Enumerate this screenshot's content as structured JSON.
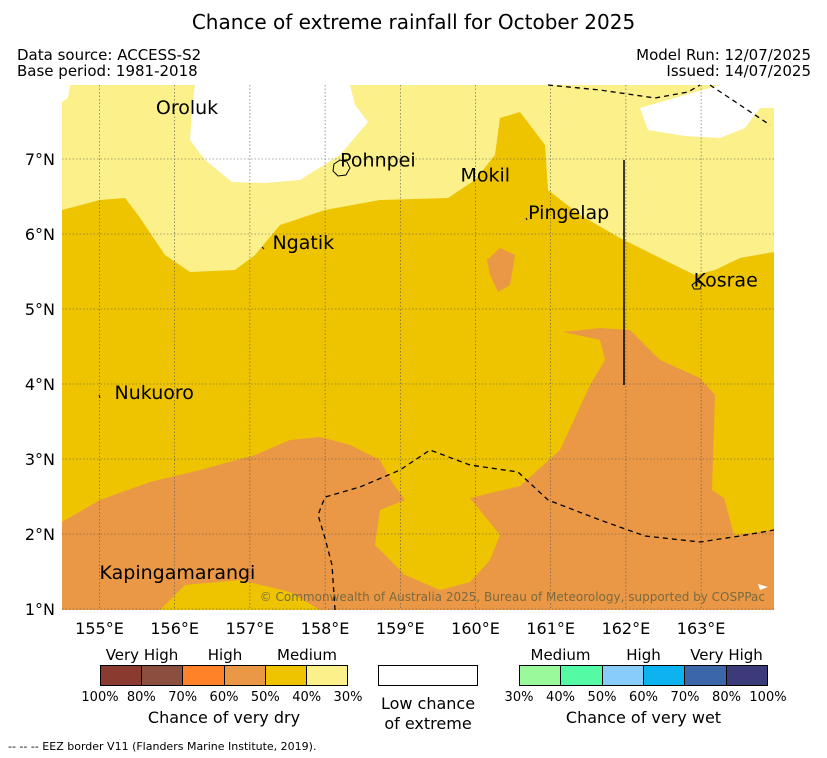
{
  "title": "Chance of extreme rainfall for October 2025",
  "meta": {
    "data_source": "Data source: ACCESS-S2",
    "base_period": "Base period: 1981-2018",
    "model_run": "Model Run: 12/07/2025",
    "issued": "Issued: 14/07/2025"
  },
  "map": {
    "lon_labels": [
      "155°E",
      "156°E",
      "157°E",
      "158°E",
      "159°E",
      "160°E",
      "161°E",
      "162°E",
      "163°E"
    ],
    "lat_labels": [
      "7°N",
      "6°N",
      "5°N",
      "4°N",
      "3°N",
      "2°N",
      "1°N"
    ],
    "places": [
      {
        "name": "Oroluk",
        "lon": 155.75,
        "lat": 7.6
      },
      {
        "name": "Pohnpei",
        "lon": 158.2,
        "lat": 6.9
      },
      {
        "name": "Mokil",
        "lon": 159.8,
        "lat": 6.7
      },
      {
        "name": "Pingelap",
        "lon": 160.7,
        "lat": 6.2
      },
      {
        "name": "Ngatik",
        "lon": 157.3,
        "lat": 5.8
      },
      {
        "name": "Kosrae",
        "lon": 162.9,
        "lat": 5.3
      },
      {
        "name": "Nukuoro",
        "lon": 155.2,
        "lat": 3.8
      },
      {
        "name": "Kapingamarangi",
        "lon": 155.0,
        "lat": 1.4
      }
    ],
    "copyright": "© Commonwealth of Australia 2025, Bureau of Meteorology, supported by COSPPac"
  },
  "legend": {
    "dry": {
      "categories": [
        "Very High",
        "High",
        "Medium"
      ],
      "percent_labels": [
        "100%",
        "80%",
        "70%",
        "60%",
        "50%",
        "40%",
        "30%"
      ],
      "colors": [
        "#8b3a30",
        "#8b4f3f",
        "#ff8229",
        "#ea9845",
        "#eec400",
        "#fbf08a"
      ],
      "caption": "Chance of very dry"
    },
    "neutral": {
      "caption_line1": "Low chance",
      "caption_line2": "of extreme",
      "color": "#ffffff"
    },
    "wet": {
      "categories": [
        "Medium",
        "High",
        "Very High"
      ],
      "percent_labels": [
        "30%",
        "40%",
        "50%",
        "60%",
        "70%",
        "80%",
        "100%"
      ],
      "colors": [
        "#99f99b",
        "#55fba4",
        "#88ccfb",
        "#0cb3ee",
        "#3b67a8",
        "#3c3b79"
      ],
      "caption": "Chance of very wet"
    }
  },
  "footnote": "--  --  -- EEZ border V11 (Flanders Marine Institute, 2019)."
}
